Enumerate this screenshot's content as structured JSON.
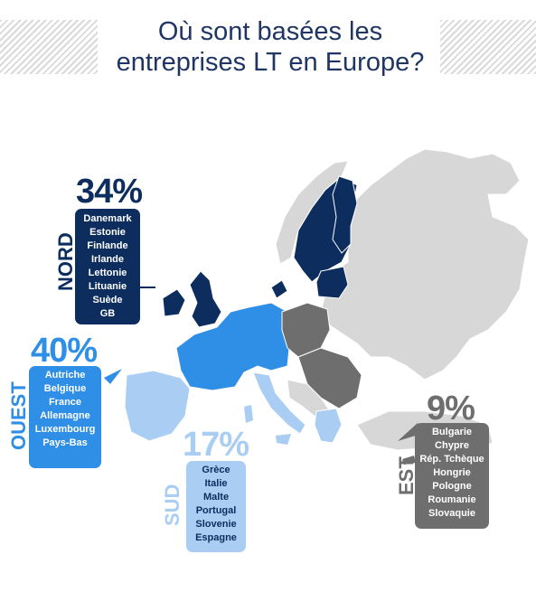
{
  "title_line1": "Où sont basées les",
  "title_line2": "entreprises LT en Europe?",
  "regions": {
    "nord": {
      "name": "NORD",
      "percent": "34%",
      "color": "#0d2d5e",
      "countries": [
        "Danemark",
        "Estonie",
        "Finlande",
        "Irlande",
        "Lettonie",
        "Lituanie",
        "Suède",
        "GB"
      ]
    },
    "ouest": {
      "name": "OUEST",
      "percent": "40%",
      "color": "#2f8ee6",
      "countries": [
        "Autriche",
        "Belgique",
        "France",
        "Allemagne",
        "Luxembourg",
        "Pays-Bas"
      ]
    },
    "sud": {
      "name": "SUD",
      "percent": "17%",
      "color": "#a9cdf3",
      "countries": [
        "Grèce",
        "Italie",
        "Malte",
        "Portugal",
        "Slovenie",
        "Espagne"
      ]
    },
    "est": {
      "name": "EST",
      "percent": "9%",
      "color": "#6e6e6e",
      "countries": [
        "Bulgarie",
        "Chypre",
        "Rép. Tchèque",
        "Hongrie",
        "Pologne",
        "Roumanie",
        "Slovaquie"
      ]
    }
  }
}
